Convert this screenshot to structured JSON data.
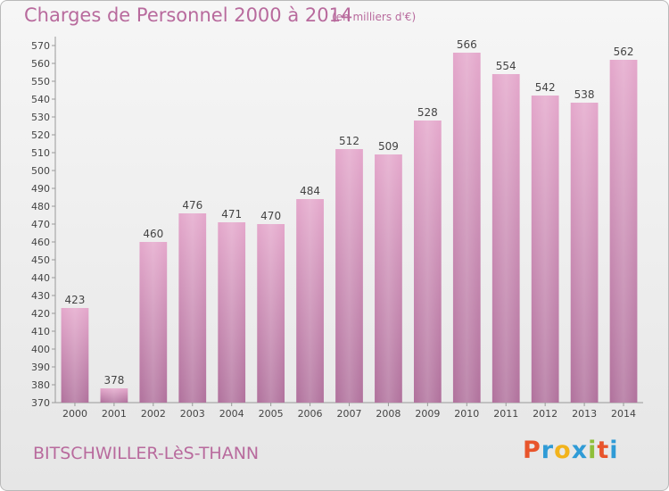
{
  "header": {
    "title": "Charges de Personnel 2000 à 2014",
    "subtitle": "(en milliers d'€)"
  },
  "footer": {
    "city": "BITSCHWILLER-LèS-THANN",
    "brand": "Proxiti",
    "brand_colors": [
      "#e8542b",
      "#2f9bd6",
      "#f2b31c",
      "#2f9bd6",
      "#8fbf3a",
      "#e8542b",
      "#2f9bd6"
    ]
  },
  "chart_data": {
    "type": "bar",
    "categories": [
      "2000",
      "2001",
      "2002",
      "2003",
      "2004",
      "2005",
      "2006",
      "2007",
      "2008",
      "2009",
      "2010",
      "2011",
      "2012",
      "2013",
      "2014"
    ],
    "values": [
      423,
      378,
      460,
      476,
      471,
      470,
      484,
      512,
      509,
      528,
      566,
      554,
      542,
      538,
      562
    ],
    "title": "Charges de Personnel 2000 à 2014",
    "subtitle": "(en milliers d'€)",
    "ylim": [
      370,
      570
    ],
    "ytick_step": 10,
    "grid": false,
    "bar_color": "#c97fae"
  }
}
